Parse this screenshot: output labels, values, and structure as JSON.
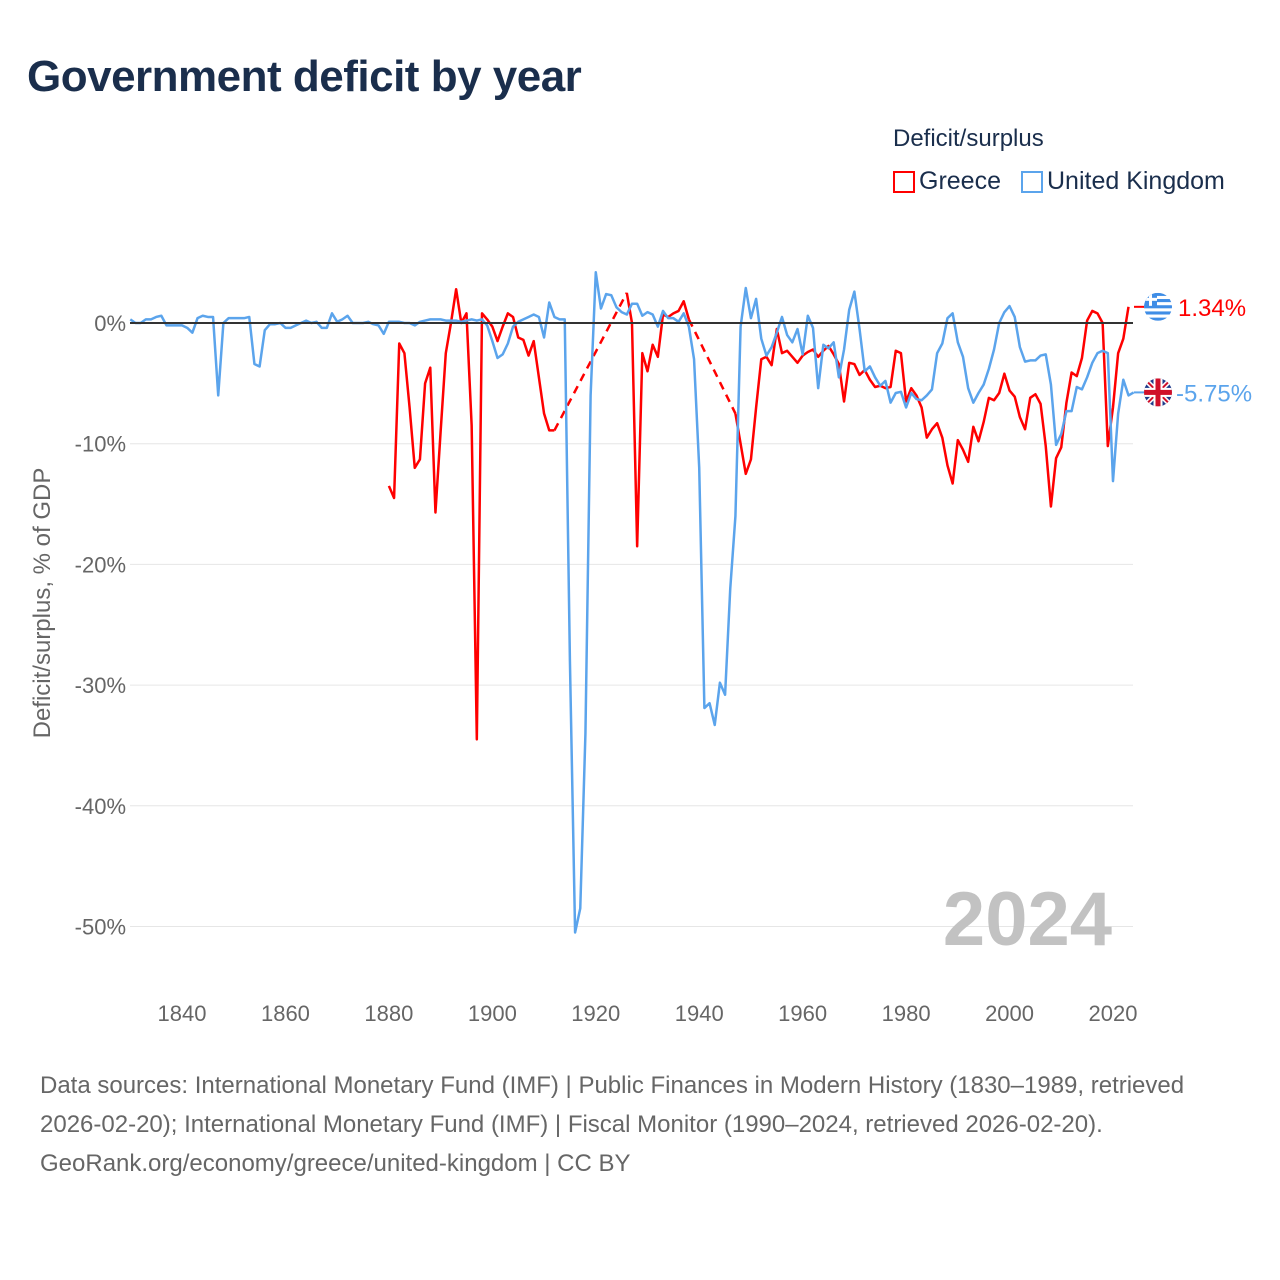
{
  "title": "Government deficit by year",
  "legend": {
    "title": "Deficit/surplus",
    "items": [
      {
        "label": "Greece",
        "color": "#ff0000"
      },
      {
        "label": "United Kingdom",
        "color": "#5ba4ec"
      }
    ]
  },
  "year_label": "2024",
  "end_labels": {
    "greece": "1.34%",
    "uk": "-5.75%"
  },
  "footer": {
    "sources": "Data sources: International Monetary Fund (IMF) | Public Finances in Modern History (1830–1989, retrieved 2026-02-20); International Monetary Fund (IMF) | Fiscal Monitor (1990–2024, retrieved 2026-02-20).",
    "credit": "GeoRank.org/economy/greece/united-kingdom | CC BY"
  },
  "chart_data": {
    "type": "line",
    "title": "Government deficit by year",
    "xlabel": "",
    "ylabel": "Deficit/surplus, % of GDP",
    "xlim": [
      1830,
      2024
    ],
    "ylim": [
      -52,
      4.5
    ],
    "xticks": [
      1840,
      1860,
      1880,
      1900,
      1920,
      1940,
      1960,
      1980,
      2000,
      2020
    ],
    "xtick_labels": [
      "1840",
      "1860",
      "1880",
      "1900",
      "1920",
      "1940",
      "1960",
      "1980",
      "2000",
      "2020"
    ],
    "yticks": [
      0,
      -10,
      -20,
      -30,
      -40,
      -50
    ],
    "ytick_labels": [
      "0%",
      "-10%",
      "-20%",
      "-30%",
      "-40%",
      "-50%"
    ],
    "grid": true,
    "legend_position": "top-right",
    "series": [
      {
        "name": "Greece",
        "color": "#ff0000",
        "start_year": 1880,
        "note": "null = missing year (drawn as dashed interpolation)",
        "values": [
          -13.5,
          -14.5,
          -1.7,
          -2.5,
          -7,
          -12,
          -11.3,
          -5,
          -3.7,
          -15.7,
          -9,
          -2.5,
          0,
          2.8,
          0,
          0.8,
          -8.5,
          -34.5,
          0.8,
          0.3,
          -0.3,
          -1.5,
          -0.3,
          0.8,
          0.5,
          -1.2,
          -1.4,
          -2.7,
          -1.5,
          -4.5,
          -7.5,
          -8.9,
          -8.9,
          null,
          null,
          null,
          null,
          null,
          null,
          null,
          null,
          null,
          null,
          null,
          null,
          null,
          2.5,
          0,
          -18.5,
          -2.5,
          -4,
          -1.8,
          -2.8,
          0.7,
          0.5,
          0.8,
          1,
          1.8,
          0.3,
          null,
          null,
          null,
          null,
          null,
          null,
          null,
          null,
          -7.5,
          -10,
          -12.5,
          -11.3,
          -7,
          -3,
          -2.8,
          -3.5,
          -0.5,
          -2.5,
          -2.3,
          -2.8,
          -3.3,
          -2.7,
          -2.4,
          -2.2,
          -2.8,
          -2.3,
          -1.9,
          -2.6,
          -3.4,
          -6.5,
          -3.3,
          -3.4,
          -4.3,
          -3.9,
          -4.7,
          -5.3,
          -5.2,
          -5.4,
          -5.3,
          -2.3,
          -2.5,
          -6.5,
          -5.4,
          -6,
          -7,
          -9.5,
          -8.8,
          -8.3,
          -9.5,
          -11.8,
          -13.3,
          -9.7,
          -10.5,
          -11.5,
          -8.6,
          -9.8,
          -8.2,
          -6.2,
          -6.4,
          -5.8,
          -4.2,
          -5.6,
          -6.1,
          -7.8,
          -8.8,
          -6.2,
          -5.9,
          -6.7,
          -10.2,
          -15.2,
          -11.2,
          -10.3,
          -6.6,
          -4.1,
          -4.4,
          -2.9,
          0.2,
          1,
          0.8,
          0,
          -10.2,
          -7,
          -2.5,
          -1.3,
          1.34
        ]
      },
      {
        "name": "United Kingdom",
        "color": "#5ba4ec",
        "start_year": 1830,
        "values": [
          0.3,
          0,
          0,
          0.3,
          0.3,
          0.5,
          0.6,
          -0.2,
          -0.2,
          -0.2,
          -0.2,
          -0.4,
          -0.8,
          0.4,
          0.6,
          0.5,
          0.5,
          -6,
          0,
          0.4,
          0.4,
          0.4,
          0.4,
          0.5,
          -3.4,
          -3.6,
          -0.6,
          -0.1,
          -0.1,
          0,
          -0.4,
          -0.4,
          -0.2,
          0,
          0.2,
          0,
          0.1,
          -0.4,
          -0.4,
          0.8,
          0.1,
          0.3,
          0.6,
          0,
          0,
          0,
          0.1,
          -0.1,
          -0.2,
          -0.9,
          0.1,
          0.1,
          0.1,
          0,
          0,
          -0.2,
          0.1,
          0.2,
          0.3,
          0.3,
          0.3,
          0.2,
          0.2,
          0.2,
          0.1,
          0.2,
          0.3,
          0.2,
          0.3,
          -0.2,
          -1.5,
          -2.9,
          -2.6,
          -1.7,
          -0.3,
          0.1,
          0.3,
          0.5,
          0.7,
          0.5,
          -1.2,
          1.7,
          0.5,
          0.3,
          0.3,
          -28,
          -50.5,
          -48.5,
          -34,
          -6,
          4.2,
          1.2,
          2.4,
          2.3,
          1.3,
          0.9,
          0.7,
          1.6,
          1.6,
          0.6,
          0.9,
          0.7,
          -0.3,
          1,
          0.4,
          0.4,
          0.1,
          0.8,
          -0.3,
          -3,
          -12,
          -31.9,
          -31.5,
          -33.3,
          -29.8,
          -30.8,
          -22,
          -16,
          -0.3,
          2.9,
          0.4,
          2,
          -1.3,
          -2.7,
          -2,
          -0.8,
          0.5,
          -1,
          -1.6,
          -0.5,
          -2.6,
          0.6,
          -0.4,
          -5.4,
          -1.8,
          -2.1,
          -1.6,
          -4.5,
          -2.2,
          1.1,
          2.6,
          -0.5,
          -4,
          -3.6,
          -4.5,
          -5.2,
          -4.8,
          -6.6,
          -5.8,
          -5.7,
          -7,
          -5.8,
          -6.3,
          -6.4,
          -6,
          -5.5,
          -2.5,
          -1.7,
          0.4,
          0.8,
          -1.6,
          -2.8,
          -5.4,
          -6.6,
          -5.8,
          -5.1,
          -3.8,
          -2.2,
          0,
          0.9,
          1.4,
          0.5,
          -2,
          -3.2,
          -3.1,
          -3.1,
          -2.7,
          -2.6,
          -5.1,
          -10.1,
          -9.2,
          -7.3,
          -7.3,
          -5.3,
          -5.5,
          -4.5,
          -3.3,
          -2.5,
          -2.3,
          -2.5,
          -13.1,
          -7.5,
          -4.7,
          -6,
          -5.75
        ]
      }
    ]
  }
}
